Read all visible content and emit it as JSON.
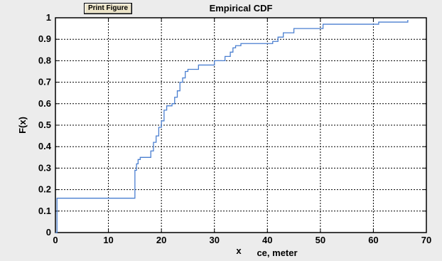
{
  "window": {
    "print_button_label": "Print Figure"
  },
  "chart_data": {
    "type": "line",
    "title": "Empirical CDF",
    "xlabel": "ce, meter",
    "xlabel_prefix": "x",
    "ylabel": "F(x)",
    "xlim": [
      0,
      70
    ],
    "ylim": [
      0,
      1
    ],
    "xticks": [
      0,
      10,
      20,
      30,
      40,
      50,
      60,
      70
    ],
    "yticks": [
      0,
      0.1,
      0.2,
      0.3,
      0.4,
      0.5,
      0.6,
      0.7,
      0.8,
      0.9,
      1
    ],
    "grid": true,
    "line_color": "#4a7fd0",
    "series": [
      {
        "step": "post",
        "x": [
          0,
          0.3,
          15,
          15.3,
          15.6,
          16,
          16.5,
          18,
          18.5,
          19,
          19.5,
          20,
          20.5,
          21,
          22,
          22.5,
          23,
          23.5,
          24,
          24.5,
          25,
          26,
          27,
          29,
          30,
          31,
          32,
          33,
          33.5,
          34,
          35,
          41,
          42,
          43,
          45,
          49,
          50.5,
          56,
          61,
          66.5
        ],
        "y": [
          0,
          0.16,
          0.29,
          0.32,
          0.34,
          0.35,
          0.35,
          0.38,
          0.42,
          0.45,
          0.49,
          0.52,
          0.57,
          0.59,
          0.6,
          0.63,
          0.66,
          0.7,
          0.72,
          0.75,
          0.76,
          0.76,
          0.78,
          0.78,
          0.8,
          0.8,
          0.82,
          0.84,
          0.86,
          0.87,
          0.88,
          0.89,
          0.91,
          0.93,
          0.95,
          0.95,
          0.97,
          0.97,
          0.98,
          0.99
        ]
      }
    ]
  }
}
